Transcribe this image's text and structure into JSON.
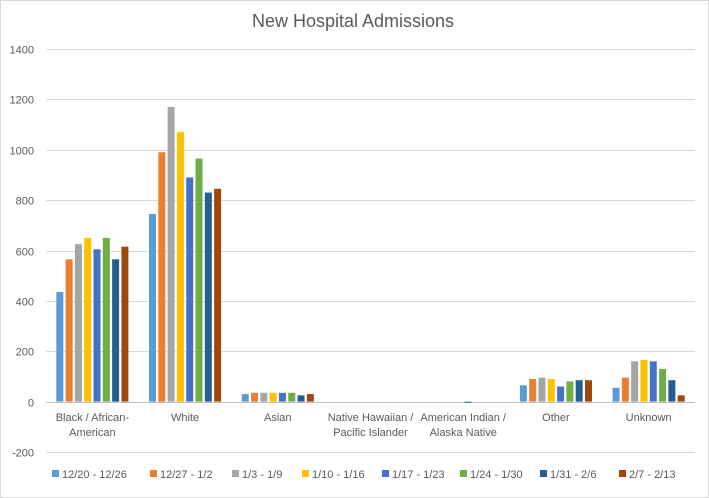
{
  "chart_data": {
    "type": "bar",
    "title": "New Hospital Admissions",
    "xlabel": "",
    "ylabel": "",
    "ylim": [
      -200,
      1400
    ],
    "yticks": [
      -200,
      0,
      200,
      400,
      600,
      800,
      1000,
      1200,
      1400
    ],
    "grid": true,
    "legend_position": "bottom",
    "categories": [
      [
        "Black / African-",
        "American"
      ],
      [
        "White"
      ],
      [
        "Asian"
      ],
      [
        "Native Hawaiian /",
        "Pacific Islander"
      ],
      [
        "American Indian /",
        "Alaska Native"
      ],
      [
        "Other"
      ],
      [
        "Unknown"
      ]
    ],
    "series": [
      {
        "name": "12/20 - 12/26",
        "color": "#5b9bd5",
        "values": [
          435,
          745,
          30,
          0,
          0,
          65,
          55
        ]
      },
      {
        "name": "12/27 - 1/2",
        "color": "#ed7d31",
        "values": [
          565,
          990,
          35,
          0,
          0,
          90,
          95
        ]
      },
      {
        "name": "1/3 - 1/9",
        "color": "#a5a5a5",
        "values": [
          625,
          1170,
          35,
          0,
          0,
          95,
          160
        ]
      },
      {
        "name": "1/10 - 1/16",
        "color": "#ffc000",
        "values": [
          650,
          1070,
          35,
          0,
          0,
          90,
          165
        ]
      },
      {
        "name": "1/17 - 1/23",
        "color": "#4472c4",
        "values": [
          605,
          890,
          35,
          0,
          -5,
          60,
          160
        ]
      },
      {
        "name": "1/24 - 1/30",
        "color": "#70ad47",
        "values": [
          650,
          965,
          35,
          0,
          0,
          80,
          130
        ]
      },
      {
        "name": "1/31 - 2/6",
        "color": "#255e91",
        "values": [
          565,
          830,
          25,
          0,
          0,
          85,
          85
        ]
      },
      {
        "name": "2/7 - 2/13",
        "color": "#9e480e",
        "values": [
          615,
          845,
          30,
          0,
          0,
          85,
          25
        ]
      }
    ]
  }
}
